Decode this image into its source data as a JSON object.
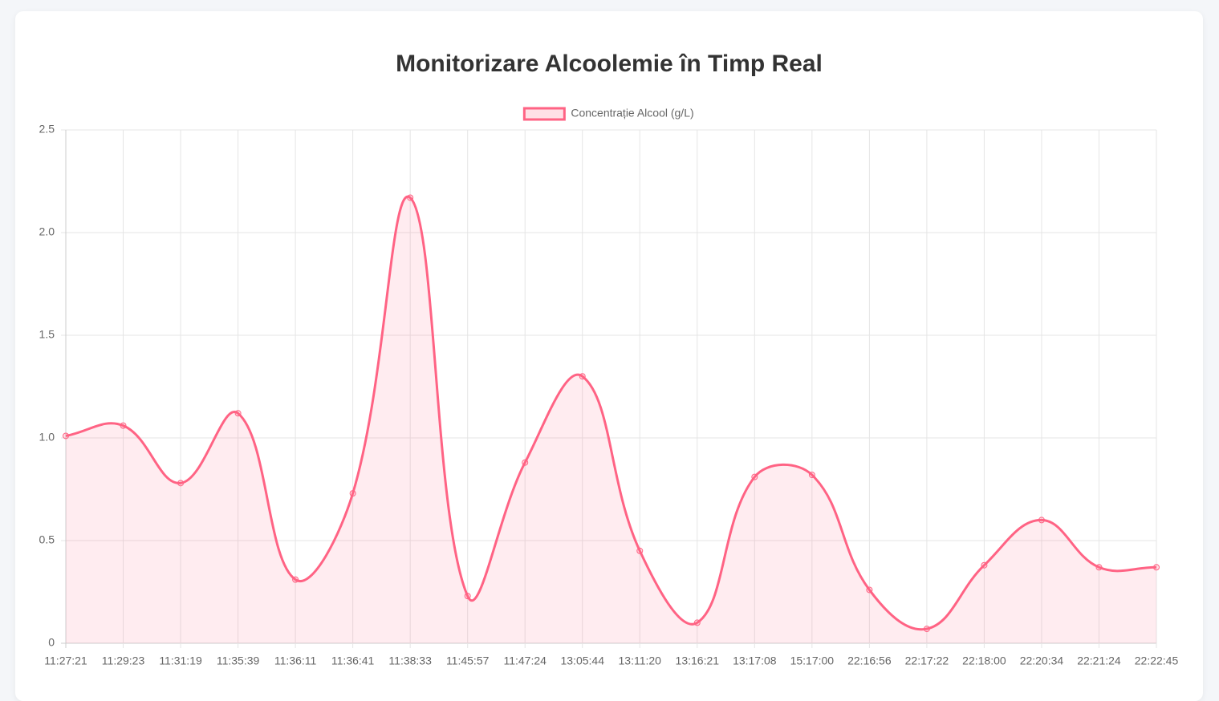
{
  "chart_data": {
    "type": "line",
    "title": "Monitorizare Alcoolemie în Timp Real",
    "categories": [
      "11:27:21",
      "11:29:23",
      "11:31:19",
      "11:35:39",
      "11:36:11",
      "11:36:41",
      "11:38:33",
      "11:45:57",
      "11:47:24",
      "13:05:44",
      "13:11:20",
      "13:16:21",
      "13:17:08",
      "15:17:00",
      "22:16:56",
      "22:17:22",
      "22:18:00",
      "22:20:34",
      "22:21:24",
      "22:22:45"
    ],
    "series": [
      {
        "name": "Concentrație Alcool (g/L)",
        "color": "#ff6384",
        "values": [
          1.01,
          1.06,
          0.78,
          1.12,
          0.31,
          0.73,
          2.17,
          0.23,
          0.88,
          1.3,
          0.45,
          0.1,
          0.81,
          0.82,
          0.26,
          0.07,
          0.38,
          0.6,
          0.37,
          0.37
        ]
      }
    ],
    "ylim": [
      0,
      2.5
    ],
    "yticks": [
      0,
      0.5,
      {
        "value": 1,
        "label": "1.0"
      },
      1.5,
      {
        "value": 2,
        "label": "2.0"
      },
      2.5
    ],
    "grid": true,
    "fill": true,
    "legend": "top"
  }
}
